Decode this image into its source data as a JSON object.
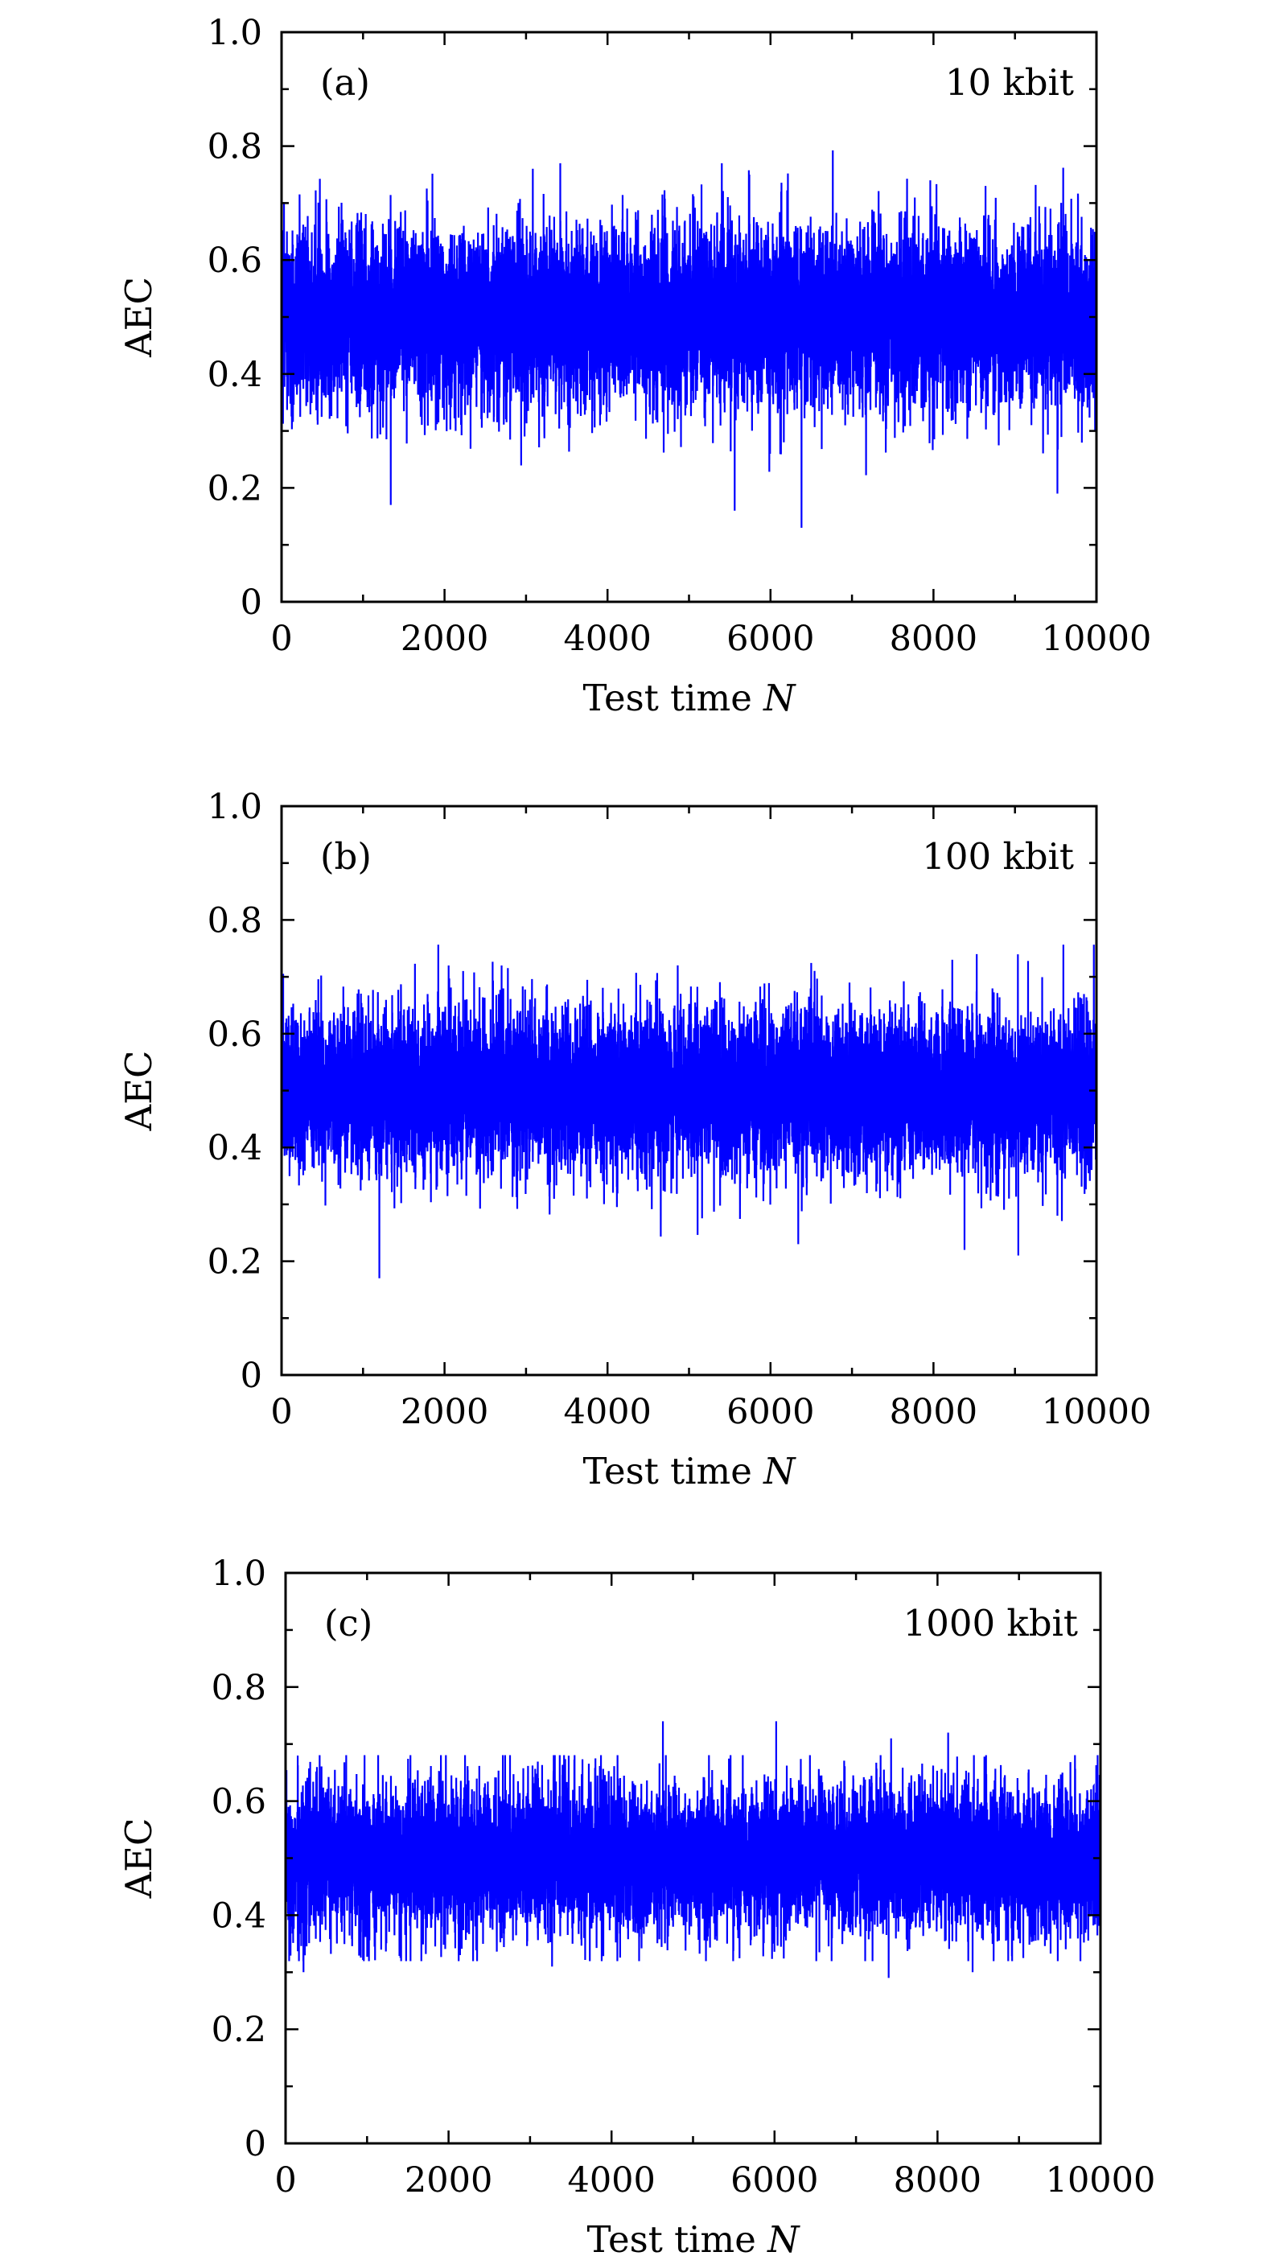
{
  "chart_data": [
    {
      "type": "line",
      "panel_label": "(a)",
      "annotation": "10 kbit",
      "xlabel_text": "Test time ",
      "xlabel_var": "N",
      "ylabel": "AEC",
      "xlim": [
        0,
        10000
      ],
      "ylim": [
        0,
        1.0
      ],
      "x_ticks": [
        0,
        2000,
        4000,
        6000,
        8000,
        10000
      ],
      "x_tick_labels": [
        "0",
        "2000",
        "4000",
        "6000",
        "8000",
        "10000"
      ],
      "y_ticks": [
        0,
        0.2,
        0.4,
        0.6,
        0.8,
        1.0
      ],
      "y_tick_labels": [
        "0",
        "0.2",
        "0.4",
        "0.6",
        "0.8",
        "1.0"
      ],
      "grid": false,
      "legend": "none",
      "series": [
        {
          "color": "#0000ff",
          "n_points": 10000,
          "mean": 0.5,
          "typical_band": [
            0.38,
            0.62
          ],
          "peaks": [
            [
              3420,
              0.77
            ],
            [
              5740,
              0.75
            ],
            [
              7960,
              0.74
            ],
            [
              6130,
              0.72
            ]
          ],
          "troughs": [
            [
              6380,
              0.13
            ],
            [
              5560,
              0.16
            ],
            [
              1340,
              0.17
            ],
            [
              9520,
              0.19
            ]
          ]
        }
      ]
    },
    {
      "type": "line",
      "panel_label": "(b)",
      "annotation": "100 kbit",
      "xlabel_text": "Test time ",
      "xlabel_var": "N",
      "ylabel": "AEC",
      "xlim": [
        0,
        10000
      ],
      "ylim": [
        0,
        1.0
      ],
      "x_ticks": [
        0,
        2000,
        4000,
        6000,
        8000,
        10000
      ],
      "x_tick_labels": [
        "0",
        "2000",
        "4000",
        "6000",
        "8000",
        "10000"
      ],
      "y_ticks": [
        0,
        0.2,
        0.4,
        0.6,
        0.8,
        1.0
      ],
      "y_tick_labels": [
        "0",
        "0.2",
        "0.4",
        "0.6",
        "0.8",
        "1.0"
      ],
      "grid": false,
      "legend": "none",
      "series": [
        {
          "color": "#0000ff",
          "n_points": 10000,
          "mean": 0.5,
          "typical_band": [
            0.39,
            0.61
          ],
          "peaks": [
            [
              8530,
              0.74
            ],
            [
              2700,
              0.72
            ],
            [
              8230,
              0.73
            ],
            [
              2050,
              0.72
            ]
          ],
          "troughs": [
            [
              1200,
              0.17
            ],
            [
              9040,
              0.21
            ],
            [
              8380,
              0.22
            ],
            [
              6340,
              0.23
            ]
          ]
        }
      ]
    },
    {
      "type": "line",
      "panel_label": "(c)",
      "annotation": "1000 kbit",
      "xlabel_text": "Test time ",
      "xlabel_var": "N",
      "ylabel": "AEC",
      "xlim": [
        0,
        10000
      ],
      "ylim": [
        0,
        1.0
      ],
      "x_ticks": [
        0,
        2000,
        4000,
        6000,
        8000,
        10000
      ],
      "x_tick_labels": [
        "0",
        "2000",
        "4000",
        "6000",
        "8000",
        "10000"
      ],
      "y_ticks": [
        0,
        0.2,
        0.4,
        0.6,
        0.8,
        1.0
      ],
      "y_tick_labels": [
        "0",
        "0.2",
        "0.4",
        "0.6",
        "0.8",
        "1.0"
      ],
      "grid": false,
      "legend": "none",
      "series": [
        {
          "color": "#0000ff",
          "n_points": 10000,
          "mean": 0.5,
          "typical_band": [
            0.4,
            0.6
          ],
          "peaks": [
            [
              4630,
              0.74
            ],
            [
              6020,
              0.74
            ],
            [
              8130,
              0.72
            ],
            [
              7430,
              0.71
            ]
          ],
          "troughs": [
            [
              7400,
              0.29
            ],
            [
              8430,
              0.3
            ],
            [
              220,
              0.3
            ],
            [
              3270,
              0.31
            ]
          ]
        }
      ]
    }
  ]
}
